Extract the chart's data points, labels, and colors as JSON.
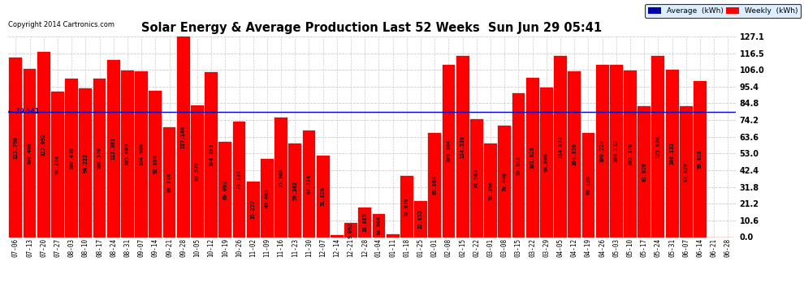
{
  "title": "Solar Energy & Average Production Last 52 Weeks  Sun Jun 29 05:41",
  "copyright": "Copyright 2014 Cartronics.com",
  "average_label": "Average  (kWh)",
  "weekly_label": "Weekly  (kWh)",
  "average_value": 79.541,
  "y_tick_labels": [
    "0.0",
    "10.6",
    "21.2",
    "31.8",
    "42.4",
    "53.0",
    "63.6",
    "74.2",
    "84.8",
    "95.4",
    "106.0",
    "116.5",
    "127.1"
  ],
  "y_tick_values": [
    0.0,
    10.6,
    21.2,
    31.8,
    42.4,
    53.0,
    63.6,
    74.2,
    84.8,
    95.4,
    106.0,
    116.5,
    127.1
  ],
  "x_labels": [
    "07-06",
    "07-13",
    "07-20",
    "07-27",
    "08-03",
    "08-10",
    "08-17",
    "08-24",
    "08-31",
    "09-07",
    "09-14",
    "09-21",
    "09-28",
    "10-05",
    "10-12",
    "10-19",
    "10-26",
    "11-02",
    "11-09",
    "11-16",
    "11-23",
    "11-30",
    "12-07",
    "12-14",
    "12-21",
    "12-28",
    "01-04",
    "01-11",
    "01-18",
    "01-25",
    "02-01",
    "02-08",
    "02-15",
    "02-22",
    "03-01",
    "03-08",
    "03-15",
    "03-22",
    "03-29",
    "04-05",
    "04-12",
    "04-19",
    "04-26",
    "05-03",
    "05-10",
    "05-17",
    "05-24",
    "05-31",
    "06-07",
    "06-14",
    "06-21",
    "06-28"
  ],
  "values": [
    113.79,
    106.468,
    117.092,
    92.224,
    100.436,
    94.222,
    100.576,
    112.301,
    105.609,
    104.966,
    92.884,
    69.724,
    127.14,
    83.579,
    104.283,
    60.093,
    73.137,
    35.237,
    49.463,
    75.968,
    59.302,
    67.274,
    51.82,
    1.053,
    9.092,
    18.885,
    14.664,
    1.752,
    38.62,
    22.852,
    65.864,
    109.304,
    114.538,
    74.503,
    59.396,
    70.44,
    90.912,
    101.028,
    94.606,
    114.872,
    104.83,
    66.128,
    109.224,
    109.132,
    105.376,
    83.02,
    115.02,
    106.132,
    83.02,
    99.028,
    0,
    0
  ],
  "bar_color": "#ff0000",
  "avg_line_color": "#0000cc",
  "bg_color": "#ffffff",
  "grid_color": "#cccccc",
  "label_font_size": 5.5,
  "value_font_size": 4.8,
  "ylim": [
    0,
    127.1
  ]
}
